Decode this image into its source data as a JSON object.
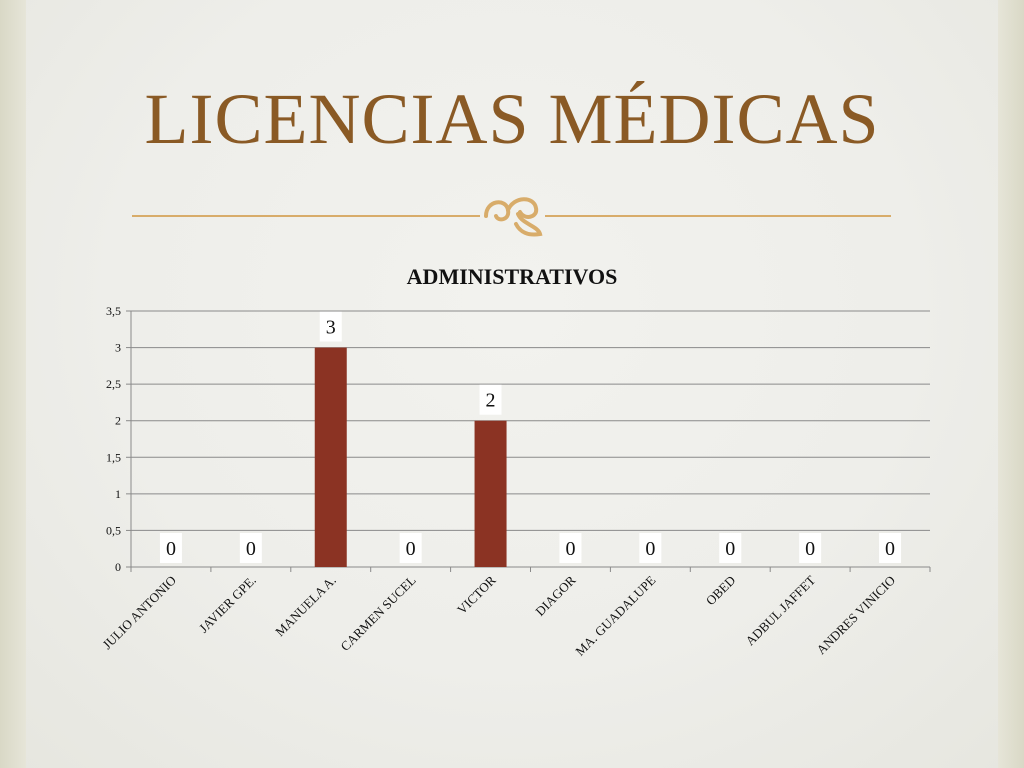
{
  "slide": {
    "title": "LICENCIAS MÉDICAS",
    "flourish_icon": "ornamental-flourish-icon",
    "accent_color": "#8a5a25",
    "line_color": "#d8ac6a"
  },
  "chart_data": {
    "type": "bar",
    "title": "ADMINISTRATIVOS",
    "categories": [
      "JULIO ANTONIO",
      "JAVIER GPE.",
      "MANUELA A.",
      "CARMEN SUCEL",
      "VICTOR",
      "DIAGOR",
      "MA. GUADALUPE",
      "OBED",
      "ADBUL JAFFET",
      "ANDRES VINICIO"
    ],
    "values": [
      0,
      0,
      3,
      0,
      2,
      0,
      0,
      0,
      0,
      0
    ],
    "data_labels": [
      "0",
      "0",
      "3",
      "0",
      "2",
      "0",
      "0",
      "0",
      "0",
      "0"
    ],
    "ylim": [
      0,
      3.5
    ],
    "yticks": [
      "0",
      "0,5",
      "1",
      "1,5",
      "2",
      "2,5",
      "3",
      "3,5"
    ],
    "ytick_values": [
      0,
      0.5,
      1,
      1.5,
      2,
      2.5,
      3,
      3.5
    ],
    "grid": true,
    "bar_color": "#8b3323",
    "xlabel": "",
    "ylabel": ""
  }
}
